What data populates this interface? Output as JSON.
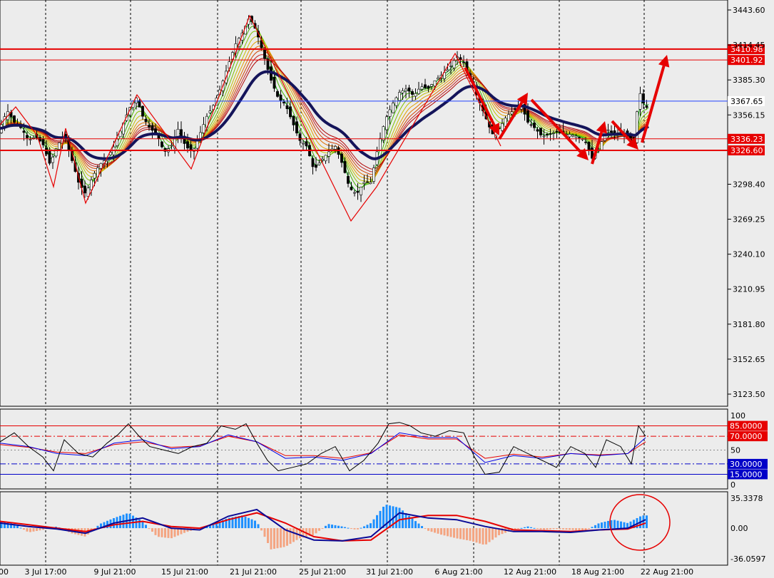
{
  "chart_data": {
    "type": "candlestick",
    "main": {
      "y_ticks": [
        "3443.60",
        "3414.45",
        "3385.30",
        "3356.15",
        "3298.40",
        "3269.25",
        "3240.10",
        "3210.95",
        "3181.80",
        "3152.65",
        "3123.50"
      ],
      "ylim": [
        3105,
        3453
      ],
      "levels": [
        {
          "value": 3410.98,
          "label": "3410.98",
          "color": "#e60000"
        },
        {
          "value": 3401.92,
          "label": "3401.92",
          "color": "#e60000"
        },
        {
          "value": 3367.65,
          "label": "3367.65",
          "color": "#2040ff"
        },
        {
          "value": 3336.23,
          "label": "3336.23",
          "color": "#e60000"
        },
        {
          "value": 3326.6,
          "label": "3326.60",
          "color": "#e60000"
        }
      ],
      "price_path": [
        [
          0,
          3345
        ],
        [
          10,
          3360
        ],
        [
          20,
          3350
        ],
        [
          30,
          3345
        ],
        [
          40,
          3335
        ],
        [
          50,
          3338
        ],
        [
          60,
          3332
        ],
        [
          70,
          3315
        ],
        [
          80,
          3330
        ],
        [
          90,
          3340
        ],
        [
          100,
          3320
        ],
        [
          110,
          3300
        ],
        [
          120,
          3290
        ],
        [
          130,
          3305
        ],
        [
          140,
          3315
        ],
        [
          150,
          3320
        ],
        [
          160,
          3330
        ],
        [
          170,
          3345
        ],
        [
          180,
          3360
        ],
        [
          190,
          3372
        ],
        [
          200,
          3355
        ],
        [
          210,
          3345
        ],
        [
          220,
          3340
        ],
        [
          230,
          3325
        ],
        [
          240,
          3330
        ],
        [
          250,
          3345
        ],
        [
          260,
          3330
        ],
        [
          270,
          3325
        ],
        [
          280,
          3340
        ],
        [
          290,
          3355
        ],
        [
          300,
          3365
        ],
        [
          310,
          3380
        ],
        [
          320,
          3398
        ],
        [
          330,
          3415
        ],
        [
          340,
          3425
        ],
        [
          350,
          3438
        ],
        [
          360,
          3425
        ],
        [
          370,
          3405
        ],
        [
          380,
          3385
        ],
        [
          390,
          3370
        ],
        [
          400,
          3365
        ],
        [
          410,
          3350
        ],
        [
          420,
          3335
        ],
        [
          430,
          3330
        ],
        [
          440,
          3310
        ],
        [
          450,
          3318
        ],
        [
          460,
          3325
        ],
        [
          470,
          3330
        ],
        [
          480,
          3315
        ],
        [
          490,
          3295
        ],
        [
          500,
          3290
        ],
        [
          510,
          3300
        ],
        [
          520,
          3300
        ],
        [
          530,
          3330
        ],
        [
          540,
          3352
        ],
        [
          550,
          3365
        ],
        [
          560,
          3375
        ],
        [
          570,
          3378
        ],
        [
          580,
          3372
        ],
        [
          590,
          3380
        ],
        [
          600,
          3378
        ],
        [
          610,
          3385
        ],
        [
          620,
          3390
        ],
        [
          630,
          3395
        ],
        [
          640,
          3405
        ],
        [
          650,
          3400
        ],
        [
          660,
          3385
        ],
        [
          670,
          3370
        ],
        [
          680,
          3355
        ],
        [
          690,
          3340
        ],
        [
          700,
          3345
        ],
        [
          710,
          3355
        ],
        [
          720,
          3360
        ],
        [
          730,
          3365
        ],
        [
          740,
          3350
        ],
        [
          750,
          3345
        ],
        [
          760,
          3338
        ],
        [
          770,
          3340
        ],
        [
          780,
          3342
        ],
        [
          790,
          3340
        ],
        [
          800,
          3340
        ],
        [
          810,
          3338
        ],
        [
          820,
          3335
        ],
        [
          830,
          3320
        ],
        [
          840,
          3328
        ],
        [
          850,
          3345
        ],
        [
          860,
          3340
        ],
        [
          870,
          3342
        ],
        [
          880,
          3338
        ],
        [
          890,
          3330
        ],
        [
          895,
          3378
        ],
        [
          900,
          3370
        ],
        [
          905,
          3360
        ],
        [
          910,
          3368
        ]
      ]
    },
    "arrows": [
      [
        [
          652,
          95
        ],
        [
          700,
          190
        ]
      ],
      [
        [
          700,
          195
        ],
        [
          740,
          130
        ]
      ],
      [
        [
          745,
          140
        ],
        [
          825,
          225
        ]
      ],
      [
        [
          830,
          230
        ],
        [
          848,
          170
        ]
      ],
      [
        [
          858,
          170
        ],
        [
          895,
          210
        ]
      ],
      [
        [
          900,
          200
        ],
        [
          935,
          77
        ]
      ]
    ],
    "zigzag": [
      [
        [
          0,
          175
        ],
        [
          22,
          150
        ],
        [
          52,
          190
        ],
        [
          75,
          262
        ],
        [
          92,
          180
        ],
        [
          120,
          285
        ],
        [
          192,
          133
        ],
        [
          268,
          237
        ],
        [
          350,
          22
        ],
        [
          492,
          310
        ],
        [
          528,
          262
        ],
        [
          638,
          75
        ],
        [
          702,
          205
        ]
      ]
    ],
    "rsi": {
      "y_ticks": [
        "100",
        "50",
        "0"
      ],
      "levels": [
        {
          "value": 85.0,
          "label": "85.0000",
          "color": "#e60000",
          "style": "solid"
        },
        {
          "value": 70.0,
          "label": "70.0000",
          "color": "#e60000",
          "style": "dashdot"
        },
        {
          "value": 30.0,
          "label": "30.0000",
          "color": "#0000c8",
          "style": "dashdot"
        },
        {
          "value": 15.0,
          "label": "15.0000",
          "color": "#0000c8",
          "style": "solid"
        }
      ],
      "black": [
        [
          0,
          62
        ],
        [
          20,
          75
        ],
        [
          40,
          55
        ],
        [
          60,
          40
        ],
        [
          75,
          20
        ],
        [
          90,
          65
        ],
        [
          110,
          45
        ],
        [
          130,
          40
        ],
        [
          150,
          60
        ],
        [
          165,
          72
        ],
        [
          180,
          88
        ],
        [
          195,
          70
        ],
        [
          210,
          55
        ],
        [
          230,
          50
        ],
        [
          250,
          45
        ],
        [
          270,
          55
        ],
        [
          290,
          60
        ],
        [
          310,
          85
        ],
        [
          330,
          80
        ],
        [
          345,
          88
        ],
        [
          360,
          60
        ],
        [
          375,
          35
        ],
        [
          390,
          20
        ],
        [
          410,
          25
        ],
        [
          430,
          30
        ],
        [
          450,
          45
        ],
        [
          470,
          55
        ],
        [
          490,
          20
        ],
        [
          510,
          35
        ],
        [
          530,
          60
        ],
        [
          545,
          88
        ],
        [
          560,
          90
        ],
        [
          575,
          85
        ],
        [
          590,
          75
        ],
        [
          610,
          70
        ],
        [
          630,
          78
        ],
        [
          650,
          75
        ],
        [
          665,
          40
        ],
        [
          680,
          15
        ],
        [
          700,
          18
        ],
        [
          720,
          55
        ],
        [
          740,
          45
        ],
        [
          760,
          35
        ],
        [
          780,
          25
        ],
        [
          800,
          55
        ],
        [
          820,
          45
        ],
        [
          835,
          25
        ],
        [
          850,
          65
        ],
        [
          870,
          55
        ],
        [
          885,
          30
        ],
        [
          895,
          85
        ],
        [
          905,
          70
        ]
      ],
      "blue": [
        [
          0,
          60
        ],
        [
          40,
          55
        ],
        [
          80,
          45
        ],
        [
          120,
          42
        ],
        [
          160,
          60
        ],
        [
          200,
          65
        ],
        [
          240,
          52
        ],
        [
          280,
          55
        ],
        [
          320,
          72
        ],
        [
          360,
          62
        ],
        [
          400,
          38
        ],
        [
          440,
          40
        ],
        [
          480,
          35
        ],
        [
          520,
          45
        ],
        [
          560,
          75
        ],
        [
          600,
          68
        ],
        [
          640,
          68
        ],
        [
          680,
          32
        ],
        [
          720,
          42
        ],
        [
          760,
          38
        ],
        [
          800,
          45
        ],
        [
          840,
          42
        ],
        [
          880,
          45
        ],
        [
          905,
          68
        ]
      ],
      "red": [
        [
          0,
          58
        ],
        [
          40,
          54
        ],
        [
          80,
          47
        ],
        [
          120,
          45
        ],
        [
          160,
          58
        ],
        [
          200,
          62
        ],
        [
          240,
          54
        ],
        [
          280,
          56
        ],
        [
          320,
          70
        ],
        [
          360,
          62
        ],
        [
          400,
          42
        ],
        [
          440,
          42
        ],
        [
          480,
          38
        ],
        [
          520,
          46
        ],
        [
          560,
          72
        ],
        [
          600,
          66
        ],
        [
          640,
          66
        ],
        [
          680,
          38
        ],
        [
          720,
          44
        ],
        [
          760,
          40
        ],
        [
          800,
          45
        ],
        [
          840,
          43
        ],
        [
          880,
          45
        ],
        [
          905,
          62
        ]
      ]
    },
    "macd": {
      "y_ticks": [
        "35.3378",
        "0.00",
        "-36.0597"
      ],
      "ylim": [
        -36.0597,
        35.3378
      ],
      "bars": [
        [
          0,
          8
        ],
        [
          20,
          5
        ],
        [
          40,
          -5
        ],
        [
          60,
          -2
        ],
        [
          80,
          2
        ],
        [
          100,
          -6
        ],
        [
          120,
          -10
        ],
        [
          140,
          5
        ],
        [
          160,
          12
        ],
        [
          180,
          18
        ],
        [
          200,
          8
        ],
        [
          220,
          -10
        ],
        [
          240,
          -12
        ],
        [
          260,
          -5
        ],
        [
          280,
          0
        ],
        [
          300,
          5
        ],
        [
          320,
          12
        ],
        [
          340,
          15
        ],
        [
          360,
          8
        ],
        [
          380,
          -25
        ],
        [
          400,
          -22
        ],
        [
          420,
          -12
        ],
        [
          440,
          -8
        ],
        [
          460,
          5
        ],
        [
          480,
          2
        ],
        [
          500,
          -2
        ],
        [
          520,
          6
        ],
        [
          540,
          28
        ],
        [
          560,
          24
        ],
        [
          580,
          10
        ],
        [
          600,
          -3
        ],
        [
          620,
          -8
        ],
        [
          640,
          -12
        ],
        [
          660,
          -15
        ],
        [
          680,
          -20
        ],
        [
          700,
          -8
        ],
        [
          720,
          -2
        ],
        [
          740,
          2
        ],
        [
          760,
          -2
        ],
        [
          780,
          -1
        ],
        [
          800,
          -2
        ],
        [
          820,
          -3
        ],
        [
          840,
          6
        ],
        [
          860,
          10
        ],
        [
          880,
          6
        ],
        [
          900,
          15
        ]
      ],
      "signal": [
        [
          0,
          8
        ],
        [
          40,
          4
        ],
        [
          80,
          0
        ],
        [
          120,
          -4
        ],
        [
          160,
          4
        ],
        [
          200,
          8
        ],
        [
          240,
          2
        ],
        [
          280,
          0
        ],
        [
          320,
          10
        ],
        [
          360,
          18
        ],
        [
          400,
          6
        ],
        [
          440,
          -10
        ],
        [
          480,
          -15
        ],
        [
          520,
          -14
        ],
        [
          560,
          10
        ],
        [
          600,
          15
        ],
        [
          640,
          15
        ],
        [
          680,
          8
        ],
        [
          720,
          -2
        ],
        [
          760,
          -3
        ],
        [
          800,
          -4
        ],
        [
          840,
          -2
        ],
        [
          880,
          -1
        ],
        [
          905,
          6
        ]
      ],
      "main": [
        [
          0,
          6
        ],
        [
          40,
          2
        ],
        [
          80,
          -1
        ],
        [
          120,
          -6
        ],
        [
          160,
          6
        ],
        [
          200,
          12
        ],
        [
          240,
          0
        ],
        [
          280,
          -2
        ],
        [
          320,
          14
        ],
        [
          360,
          22
        ],
        [
          400,
          -2
        ],
        [
          440,
          -14
        ],
        [
          480,
          -15
        ],
        [
          520,
          -10
        ],
        [
          560,
          18
        ],
        [
          600,
          12
        ],
        [
          640,
          10
        ],
        [
          680,
          2
        ],
        [
          720,
          -4
        ],
        [
          760,
          -4
        ],
        [
          800,
          -5
        ],
        [
          840,
          -2
        ],
        [
          880,
          0
        ],
        [
          905,
          10
        ]
      ]
    },
    "x_labels": [
      {
        "label": "00",
        "pos": 5
      },
      {
        "label": "3 Jul 17:00",
        "pos": 64
      },
      {
        "label": "9 Jul 21:00",
        "pos": 161
      },
      {
        "label": "15 Jul 21:00",
        "pos": 259
      },
      {
        "label": "21 Jul 21:00",
        "pos": 355
      },
      {
        "label": "25 Jul 21:00",
        "pos": 452
      },
      {
        "label": "31 Jul 21:00",
        "pos": 546
      },
      {
        "label": "6 Aug 21:00",
        "pos": 643
      },
      {
        "label": "12 Aug 21:00",
        "pos": 743
      },
      {
        "label": "18 Aug 21:00",
        "pos": 838
      },
      {
        "label": "22 Aug 21:00",
        "pos": 935
      }
    ],
    "vlines": [
      64,
      183,
      305,
      422,
      543,
      664,
      784,
      903
    ]
  }
}
